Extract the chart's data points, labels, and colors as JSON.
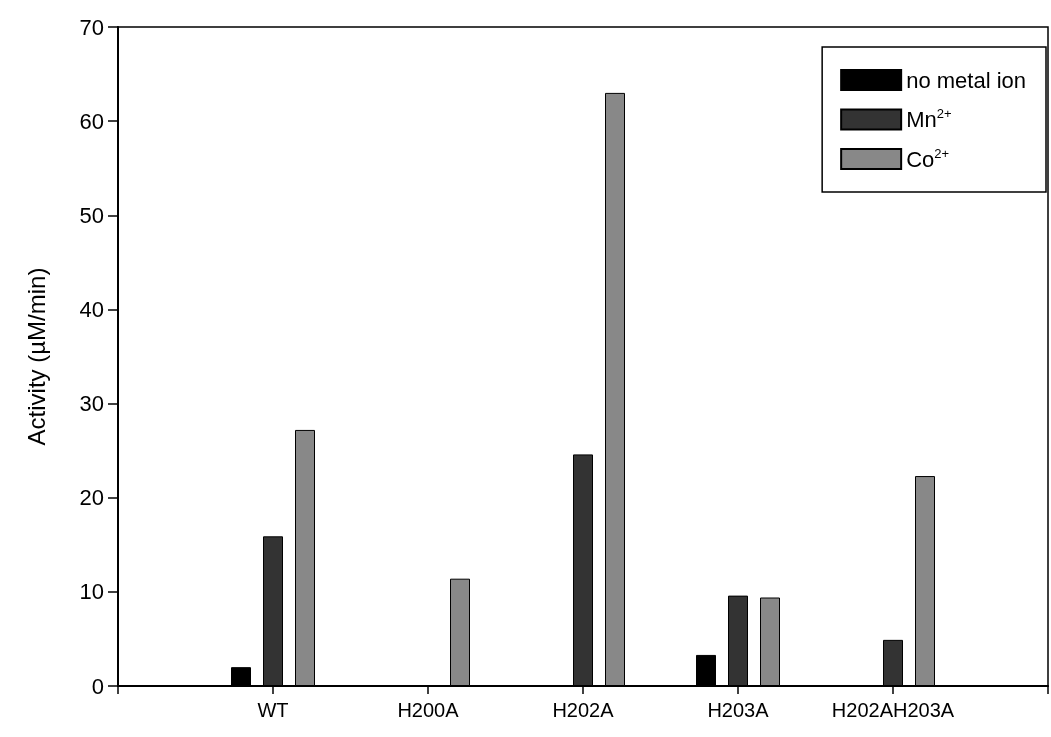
{
  "chart_data": {
    "type": "bar",
    "ylabel": "Activity (µM/min)",
    "categories": [
      null,
      "WT",
      "H200A",
      "H202A",
      "H203A",
      "H202AH203A",
      null
    ],
    "series": [
      {
        "name": "no metal ion",
        "color": "#000000",
        "values": [
          null,
          2.0,
          null,
          null,
          3.3,
          null,
          null
        ]
      },
      {
        "name": "Mn$^{2+}$",
        "color": "#333333",
        "values": [
          null,
          15.9,
          null,
          24.6,
          9.6,
          4.9,
          null
        ]
      },
      {
        "name": "Co$^{2+}$",
        "color": "#888888",
        "values": [
          null,
          27.2,
          11.4,
          63.0,
          9.4,
          22.3,
          null
        ]
      }
    ],
    "ylim": [
      0,
      70
    ],
    "yticks": [
      0,
      10,
      20,
      30,
      40,
      50,
      60,
      70
    ],
    "grid": false,
    "legend": "top right"
  }
}
